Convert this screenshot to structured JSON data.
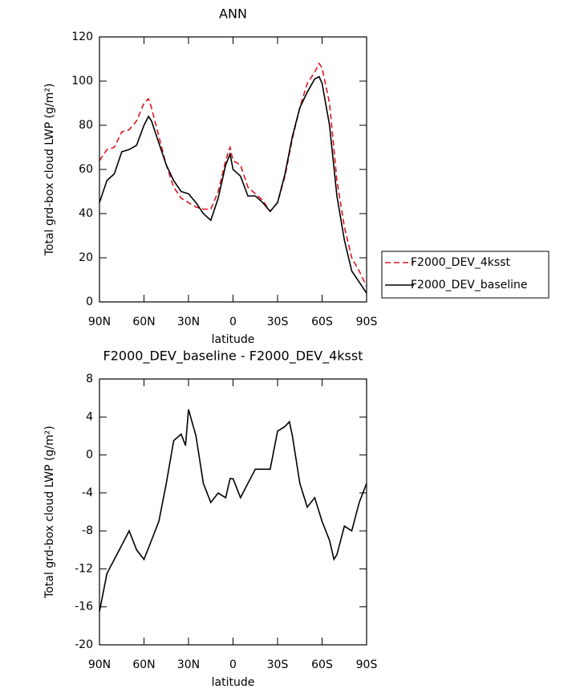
{
  "chart_data": [
    {
      "type": "line",
      "title": "ANN",
      "xlabel": "latitude",
      "ylabel": "Total grd-box cloud LWP (g/m²)",
      "x": [
        90,
        85,
        80,
        75,
        70,
        65,
        60,
        57,
        55,
        50,
        45,
        40,
        35,
        30,
        25,
        20,
        15,
        10,
        5,
        2,
        0,
        -5,
        -10,
        -15,
        -20,
        -25,
        -30,
        -35,
        -40,
        -45,
        -50,
        -55,
        -58,
        -60,
        -65,
        -70,
        -75,
        -80,
        -85,
        -90
      ],
      "series": [
        {
          "name": "F2000_DEV_4ksst",
          "color": "#e0141e",
          "dash": true,
          "values": [
            64,
            69,
            70,
            77,
            78,
            82,
            90,
            92,
            88,
            75,
            62,
            52,
            47,
            45,
            43,
            42,
            42,
            50,
            64,
            70,
            64,
            62,
            52,
            49,
            46,
            41,
            45,
            57,
            74,
            88,
            99,
            104,
            108,
            106,
            90,
            55,
            34,
            20,
            14,
            7
          ]
        },
        {
          "name": "F2000_DEV_baseline",
          "color": "#000000",
          "dash": false,
          "values": [
            45,
            55,
            58,
            68,
            69,
            71,
            80,
            84,
            82,
            72,
            62,
            55,
            50,
            49,
            45,
            40,
            37,
            47,
            62,
            67,
            60,
            57,
            48,
            48,
            45,
            41,
            45,
            58,
            75,
            88,
            95,
            101,
            102,
            99,
            80,
            48,
            28,
            14,
            9,
            4
          ]
        }
      ],
      "xlim": [
        90,
        -90
      ],
      "xticks": [
        {
          "value": 90,
          "label": "90N"
        },
        {
          "value": 60,
          "label": "60N"
        },
        {
          "value": 30,
          "label": "30N"
        },
        0,
        {
          "value": -30,
          "label": "30S"
        },
        {
          "value": -60,
          "label": "60S"
        },
        {
          "value": -90,
          "label": "90S"
        }
      ],
      "ylim": [
        0,
        120
      ],
      "yticks": [
        0,
        20,
        40,
        60,
        80,
        100,
        120
      ],
      "legend": "outside right"
    },
    {
      "type": "line",
      "title": "F2000_DEV_baseline - F2000_DEV_4ksst",
      "xlabel": "latitude",
      "ylabel": "Total grd-box cloud LWP (g/m²)",
      "x": [
        90,
        85,
        80,
        75,
        70,
        65,
        60,
        55,
        50,
        45,
        40,
        35,
        32,
        30,
        25,
        20,
        15,
        10,
        5,
        2,
        0,
        -5,
        -10,
        -15,
        -20,
        -25,
        -30,
        -35,
        -38,
        -40,
        -45,
        -50,
        -55,
        -60,
        -65,
        -68,
        -70,
        -75,
        -80,
        -85,
        -90
      ],
      "series": [
        {
          "color": "#000000",
          "dash": false,
          "values": [
            -16.5,
            -12.5,
            -11,
            -9.5,
            -8,
            -10,
            -11,
            -9,
            -7,
            -3,
            1.5,
            2.2,
            1,
            4.8,
            2,
            -3,
            -5,
            -4,
            -4.5,
            -2.5,
            -2.5,
            -4.5,
            -3,
            -1.5,
            -1.5,
            -1.5,
            2.5,
            3,
            3.5,
            2,
            -3,
            -5.5,
            -4.5,
            -7,
            -9,
            -11,
            -10.5,
            -7.5,
            -8,
            -5,
            -3
          ]
        }
      ],
      "xlim": [
        90,
        -90
      ],
      "xticks": [
        {
          "value": 90,
          "label": "90N"
        },
        {
          "value": 60,
          "label": "60N"
        },
        {
          "value": 30,
          "label": "30N"
        },
        0,
        {
          "value": -30,
          "label": "30S"
        },
        {
          "value": -60,
          "label": "60S"
        },
        {
          "value": -90,
          "label": "90S"
        }
      ],
      "ylim": [
        -20,
        8
      ],
      "yticks": [
        -20,
        -16,
        -12,
        -8,
        -4,
        0,
        4,
        8
      ]
    }
  ]
}
